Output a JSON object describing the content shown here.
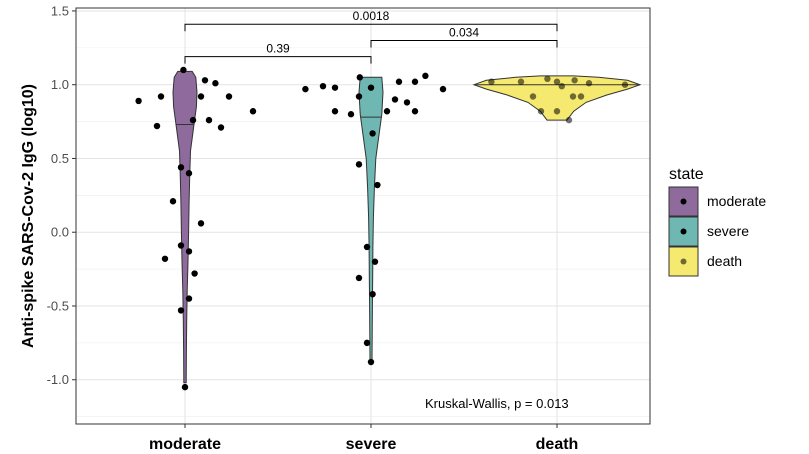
{
  "chart_data": {
    "type": "violin",
    "ylabel": "Anti-spike SARS-Cov-2 IgG  (log10)",
    "xlabel": "",
    "ylim": [
      -1.3,
      1.52
    ],
    "yticks": [
      -1.0,
      -0.5,
      0.0,
      0.5,
      1.0,
      1.5
    ],
    "ytick_labels": [
      "-1.0",
      "-0.5",
      "0.0",
      "0.5",
      "1.0",
      "1.5"
    ],
    "grid": true,
    "categories": [
      "moderate",
      "severe",
      "death"
    ],
    "series": [
      {
        "name": "moderate",
        "color": "#8e6a9d",
        "median": 0.73,
        "violin_profile": [
          [
            -1.02,
            0.1
          ],
          [
            -0.8,
            0.12
          ],
          [
            -0.6,
            0.14
          ],
          [
            -0.4,
            0.18
          ],
          [
            -0.2,
            0.25
          ],
          [
            0.0,
            0.3
          ],
          [
            0.2,
            0.34
          ],
          [
            0.4,
            0.4
          ],
          [
            0.55,
            0.46
          ],
          [
            0.7,
            0.7
          ],
          [
            0.85,
            0.95
          ],
          [
            0.95,
            1.0
          ],
          [
            1.05,
            0.9
          ],
          [
            1.09,
            0.6
          ]
        ],
        "points": [
          [
            -0.02,
            1.1
          ],
          [
            0.38,
            1.01
          ],
          [
            0.25,
            1.03
          ],
          [
            -0.58,
            0.89
          ],
          [
            -0.3,
            0.92
          ],
          [
            0.2,
            0.92
          ],
          [
            0.55,
            0.92
          ],
          [
            -0.35,
            0.72
          ],
          [
            0.1,
            0.76
          ],
          [
            0.3,
            0.76
          ],
          [
            0.45,
            0.71
          ],
          [
            0.85,
            0.82
          ],
          [
            -0.05,
            0.44
          ],
          [
            0.05,
            0.4
          ],
          [
            -0.15,
            0.21
          ],
          [
            0.2,
            0.06
          ],
          [
            -0.05,
            -0.09
          ],
          [
            0.05,
            -0.13
          ],
          [
            -0.25,
            -0.18
          ],
          [
            0.12,
            -0.28
          ],
          [
            0.05,
            -0.45
          ],
          [
            -0.05,
            -0.53
          ],
          [
            0.0,
            -1.05
          ]
        ]
      },
      {
        "name": "severe",
        "color": "#6fb7b2",
        "median": 0.78,
        "violin_profile": [
          [
            -0.88,
            0.08
          ],
          [
            -0.7,
            0.1
          ],
          [
            -0.5,
            0.12
          ],
          [
            -0.3,
            0.14
          ],
          [
            -0.1,
            0.16
          ],
          [
            0.1,
            0.2
          ],
          [
            0.3,
            0.28
          ],
          [
            0.5,
            0.4
          ],
          [
            0.65,
            0.65
          ],
          [
            0.8,
            0.9
          ],
          [
            0.95,
            1.0
          ],
          [
            1.05,
            0.9
          ]
        ],
        "points": [
          [
            -0.82,
            0.97
          ],
          [
            -0.6,
            0.99
          ],
          [
            -0.45,
            0.98
          ],
          [
            -0.14,
            1.05
          ],
          [
            0.35,
            1.02
          ],
          [
            0.55,
            1.02
          ],
          [
            0.68,
            1.06
          ],
          [
            0.9,
            0.97
          ],
          [
            -0.15,
            0.92
          ],
          [
            0.0,
            0.98
          ],
          [
            0.3,
            0.9
          ],
          [
            0.45,
            0.88
          ],
          [
            -0.45,
            0.82
          ],
          [
            -0.25,
            0.8
          ],
          [
            0.2,
            0.82
          ],
          [
            0.55,
            0.82
          ],
          [
            0.02,
            0.67
          ],
          [
            -0.15,
            0.46
          ],
          [
            0.08,
            0.32
          ],
          [
            -0.05,
            -0.1
          ],
          [
            0.05,
            -0.2
          ],
          [
            -0.15,
            -0.31
          ],
          [
            0.02,
            -0.42
          ],
          [
            -0.05,
            -0.75
          ],
          [
            0.0,
            -0.88
          ]
        ]
      },
      {
        "name": "death",
        "color": "#f6e96f",
        "median": 1.0,
        "violin_profile": [
          [
            0.76,
            0.12
          ],
          [
            0.82,
            0.2
          ],
          [
            0.88,
            0.35
          ],
          [
            0.93,
            0.6
          ],
          [
            0.97,
            0.85
          ],
          [
            1.0,
            1.0
          ],
          [
            1.03,
            0.85
          ],
          [
            1.05,
            0.5
          ],
          [
            1.06,
            0.2
          ]
        ],
        "points": [
          [
            -0.82,
            1.02
          ],
          [
            -0.45,
            1.02
          ],
          [
            -0.3,
            0.92
          ],
          [
            -0.12,
            1.04
          ],
          [
            0.0,
            1.02
          ],
          [
            0.06,
            0.99
          ],
          [
            0.3,
            0.92
          ],
          [
            0.4,
            1.01
          ],
          [
            0.2,
            0.92
          ],
          [
            -0.2,
            0.82
          ],
          [
            0.0,
            0.82
          ],
          [
            0.15,
            0.76
          ],
          [
            0.22,
            1.03
          ],
          [
            0.85,
            1.0
          ]
        ]
      }
    ],
    "comparisons": [
      {
        "from": 0,
        "to": 1,
        "label": "0.39",
        "y": 1.19
      },
      {
        "from": 1,
        "to": 2,
        "label": "0.034",
        "y": 1.3
      },
      {
        "from": 0,
        "to": 2,
        "label": "0.0018",
        "y": 1.41
      }
    ],
    "annotation": "Kruskal-Wallis, p = 0.013",
    "legend": {
      "title": "state",
      "placement": "right",
      "items": [
        "moderate",
        "severe",
        "death"
      ]
    }
  }
}
